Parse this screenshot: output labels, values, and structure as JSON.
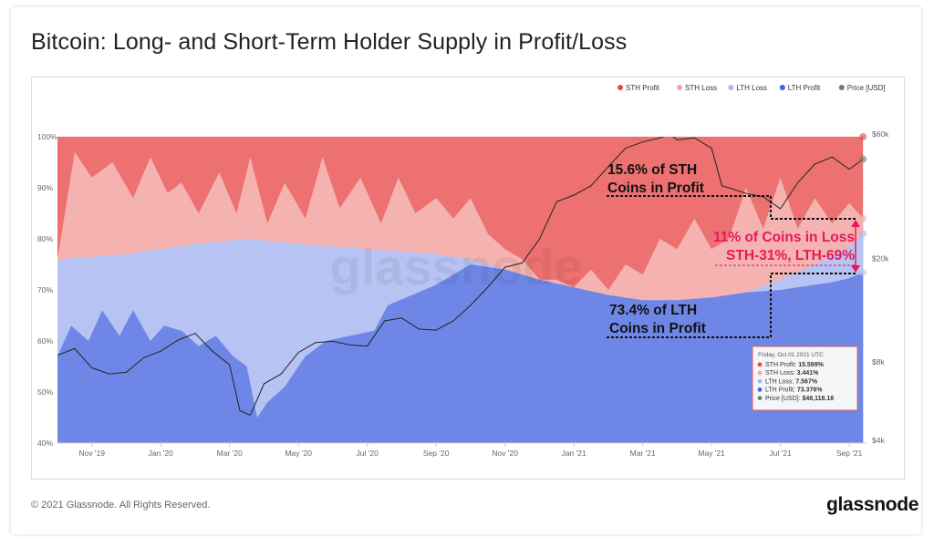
{
  "title": "Bitcoin: Long- and Short-Term Holder Supply in Profit/Loss",
  "footer": {
    "copyright": "© 2021 Glassnode. All Rights Reserved.",
    "brand": "glassnode"
  },
  "watermark": "glassnode",
  "colors": {
    "sth_profit": "#ec7170",
    "sth_loss": "#f4b3b0",
    "lth_loss": "#b7c3f2",
    "lth_profit": "#6e87e6",
    "price": "#222222",
    "annotation": "#e8185a"
  },
  "legend": [
    {
      "label": "STH Profit",
      "color": "#e34a4a"
    },
    {
      "label": "STH Loss",
      "color": "#f2a6a1"
    },
    {
      "label": "LTH Loss",
      "color": "#a9b8ef"
    },
    {
      "label": "LTH Profit",
      "color": "#4463d8"
    },
    {
      "label": "Price [USD]",
      "color": "#777777"
    }
  ],
  "annotations": {
    "sth_profit": [
      "15.6% of STH",
      "Coins in Profit"
    ],
    "lth_profit": [
      "73.4% of LTH",
      "Coins in Profit"
    ],
    "loss": [
      "11% of Coins in Loss",
      "STH-31%, LTH-69%"
    ]
  },
  "tooltip": {
    "date": "Friday, Oct 01 2021 UTC",
    "rows": [
      {
        "label": "STH Profit:",
        "value": "15.599%",
        "color": "#e34a4a"
      },
      {
        "label": "STH Loss:",
        "value": "3.441%",
        "color": "#f2a6a1"
      },
      {
        "label": "LTH Loss:",
        "value": "7.567%",
        "color": "#a9b8ef"
      },
      {
        "label": "LTH Profit:",
        "value": "73.376%",
        "color": "#4463d8"
      },
      {
        "label": "Price [USD]:",
        "value": "$48,118.18",
        "color": "#777777"
      }
    ]
  },
  "chart_data": {
    "type": "area",
    "x_ticks": [
      "Nov '19",
      "Jan '20",
      "Mar '20",
      "May '20",
      "Jul '20",
      "Sep '20",
      "Nov '20",
      "Jan '21",
      "Mar '21",
      "May '21",
      "Jul '21",
      "Sep '21"
    ],
    "y_left_ticks": [
      "100%",
      "90%",
      "80%",
      "70%",
      "60%",
      "50%",
      "40%"
    ],
    "y_left_range": [
      40,
      100
    ],
    "y_right_ticks": [
      "$60k",
      "$20k",
      "$8k",
      "$4k"
    ],
    "y_right_scale": "log",
    "y_right_range": [
      4000,
      70000
    ],
    "x_range_months": [
      0,
      23.5
    ],
    "x_origin": "Oct 2019",
    "stacking": "cumulative percent of supply (bottom to top: LTH Profit, LTH Loss, STH Loss, STH Profit)",
    "series": [
      {
        "name": "LTH Profit",
        "type": "area",
        "points": [
          [
            0,
            57
          ],
          [
            0.4,
            63
          ],
          [
            0.9,
            60
          ],
          [
            1.3,
            66
          ],
          [
            1.8,
            61
          ],
          [
            2.2,
            66
          ],
          [
            2.7,
            60
          ],
          [
            3.1,
            63
          ],
          [
            3.6,
            62
          ],
          [
            4.1,
            59
          ],
          [
            4.6,
            61
          ],
          [
            5.1,
            57
          ],
          [
            5.5,
            55
          ],
          [
            5.8,
            45
          ],
          [
            6.1,
            48
          ],
          [
            6.6,
            51
          ],
          [
            7.2,
            57
          ],
          [
            7.8,
            60
          ],
          [
            8.5,
            61
          ],
          [
            9.2,
            62
          ],
          [
            9.6,
            67
          ],
          [
            10.3,
            69
          ],
          [
            11,
            71
          ],
          [
            11.5,
            73
          ],
          [
            12,
            75
          ],
          [
            13,
            74
          ],
          [
            14,
            72
          ],
          [
            15,
            70.5
          ],
          [
            16,
            69
          ],
          [
            17,
            68
          ],
          [
            18,
            68
          ],
          [
            19,
            68.5
          ],
          [
            20,
            69.5
          ],
          [
            21,
            70
          ],
          [
            22,
            71
          ],
          [
            22.5,
            71.5
          ],
          [
            23,
            72.3
          ],
          [
            23.4,
            73.4
          ]
        ]
      },
      {
        "name": "LTH Loss",
        "type": "area",
        "points": [
          [
            0,
            76
          ],
          [
            2,
            77
          ],
          [
            4,
            79
          ],
          [
            5.5,
            80
          ],
          [
            7,
            79
          ],
          [
            9,
            78
          ],
          [
            11,
            77
          ],
          [
            12,
            76
          ],
          [
            13,
            74
          ],
          [
            14,
            72
          ],
          [
            15,
            70.5
          ],
          [
            16,
            69
          ],
          [
            17,
            68
          ],
          [
            18,
            68
          ],
          [
            19,
            68.5
          ],
          [
            20,
            69.5
          ],
          [
            21,
            72
          ],
          [
            22,
            75
          ],
          [
            23,
            78.5
          ],
          [
            23.4,
            81
          ]
        ]
      },
      {
        "name": "STH Loss",
        "type": "area",
        "points": [
          [
            0,
            76
          ],
          [
            0.5,
            97
          ],
          [
            1,
            92
          ],
          [
            1.6,
            95
          ],
          [
            2.2,
            88
          ],
          [
            2.7,
            96
          ],
          [
            3.2,
            89
          ],
          [
            3.6,
            91
          ],
          [
            4.1,
            85
          ],
          [
            4.7,
            93
          ],
          [
            5.2,
            85
          ],
          [
            5.6,
            96
          ],
          [
            6.1,
            83
          ],
          [
            6.6,
            91
          ],
          [
            7.2,
            84
          ],
          [
            7.7,
            96
          ],
          [
            8.2,
            86
          ],
          [
            8.8,
            92
          ],
          [
            9.4,
            83
          ],
          [
            9.9,
            92
          ],
          [
            10.4,
            85
          ],
          [
            11,
            88
          ],
          [
            11.5,
            84
          ],
          [
            12,
            88
          ],
          [
            12.5,
            81
          ],
          [
            13,
            78
          ],
          [
            13.5,
            76
          ],
          [
            14,
            72
          ],
          [
            14.5,
            72
          ],
          [
            15,
            70.5
          ],
          [
            15.5,
            74
          ],
          [
            16,
            70
          ],
          [
            16.5,
            75
          ],
          [
            17,
            73
          ],
          [
            17.5,
            80
          ],
          [
            18,
            78
          ],
          [
            18.5,
            84
          ],
          [
            19,
            78
          ],
          [
            19.5,
            80
          ],
          [
            20,
            90
          ],
          [
            20.5,
            82
          ],
          [
            21,
            92
          ],
          [
            21.5,
            82
          ],
          [
            22,
            88
          ],
          [
            22.5,
            83
          ],
          [
            23,
            87
          ],
          [
            23.4,
            84
          ]
        ]
      },
      {
        "name": "STH Profit",
        "type": "area",
        "points": [
          [
            0,
            100
          ],
          [
            23.4,
            100
          ]
        ]
      },
      {
        "name": "Price [USD]",
        "type": "line",
        "points": [
          [
            0,
            8500
          ],
          [
            0.5,
            9000
          ],
          [
            1,
            7600
          ],
          [
            1.5,
            7200
          ],
          [
            2,
            7300
          ],
          [
            2.5,
            8300
          ],
          [
            3,
            8800
          ],
          [
            3.5,
            9700
          ],
          [
            4,
            10300
          ],
          [
            4.5,
            8800
          ],
          [
            5,
            7800
          ],
          [
            5.3,
            5200
          ],
          [
            5.6,
            5000
          ],
          [
            6,
            6600
          ],
          [
            6.5,
            7200
          ],
          [
            7,
            8700
          ],
          [
            7.5,
            9500
          ],
          [
            8,
            9600
          ],
          [
            8.5,
            9300
          ],
          [
            9,
            9200
          ],
          [
            9.5,
            11500
          ],
          [
            10,
            11800
          ],
          [
            10.5,
            10700
          ],
          [
            11,
            10600
          ],
          [
            11.5,
            11500
          ],
          [
            12,
            13200
          ],
          [
            12.5,
            15500
          ],
          [
            13,
            18500
          ],
          [
            13.5,
            19200
          ],
          [
            14,
            23700
          ],
          [
            14.5,
            33000
          ],
          [
            15,
            35000
          ],
          [
            15.5,
            38000
          ],
          [
            16,
            45000
          ],
          [
            16.5,
            53000
          ],
          [
            17,
            56000
          ],
          [
            17.5,
            58000
          ],
          [
            17.8,
            60000
          ],
          [
            18,
            57000
          ],
          [
            18.5,
            58000
          ],
          [
            19,
            53000
          ],
          [
            19.3,
            38000
          ],
          [
            19.6,
            37000
          ],
          [
            20,
            35500
          ],
          [
            20.5,
            34500
          ],
          [
            21,
            31000
          ],
          [
            21.5,
            39000
          ],
          [
            22,
            46000
          ],
          [
            22.5,
            49000
          ],
          [
            23,
            44000
          ],
          [
            23.4,
            48100
          ]
        ]
      }
    ]
  }
}
